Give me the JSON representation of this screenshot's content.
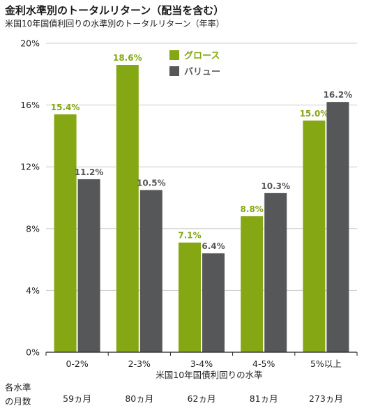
{
  "title": "金利水準別のトータルリターン（配当を含む）",
  "subtitle": "米国10年国債利回りの水準別のトータルリターン（年率）",
  "colors": {
    "growth": "#84a713",
    "value": "#555759",
    "grid": "#cccccc",
    "axis": "#222222",
    "text": "#222222"
  },
  "chart_data": {
    "type": "bar",
    "categories": [
      "0-2%",
      "2-3%",
      "3-4%",
      "4-5%",
      "5%以上"
    ],
    "series": [
      {
        "name": "グロース",
        "values": [
          15.4,
          18.6,
          7.1,
          8.8,
          15.0
        ],
        "labels": [
          "15.4%",
          "18.6%",
          "7.1%",
          "8.8%",
          "15.0%"
        ]
      },
      {
        "name": "バリュー",
        "values": [
          11.2,
          10.5,
          6.4,
          10.3,
          16.2
        ],
        "labels": [
          "11.2%",
          "10.5%",
          "6.4%",
          "10.3%",
          "16.2%"
        ]
      }
    ],
    "xlabel": "米国10年国債利回りの水準",
    "ylabel": "",
    "ylim": [
      0,
      20
    ],
    "yticks": [
      0,
      4,
      8,
      12,
      16,
      20
    ],
    "ytick_labels": [
      "0%",
      "4%",
      "8%",
      "12%",
      "16%",
      "20%"
    ],
    "grid": true,
    "legend_position": "top-center",
    "months_label": "各水準の月数",
    "months": [
      "59ヵ月",
      "80ヵ月",
      "62ヵ月",
      "81ヵ月",
      "273ヵ月"
    ]
  }
}
